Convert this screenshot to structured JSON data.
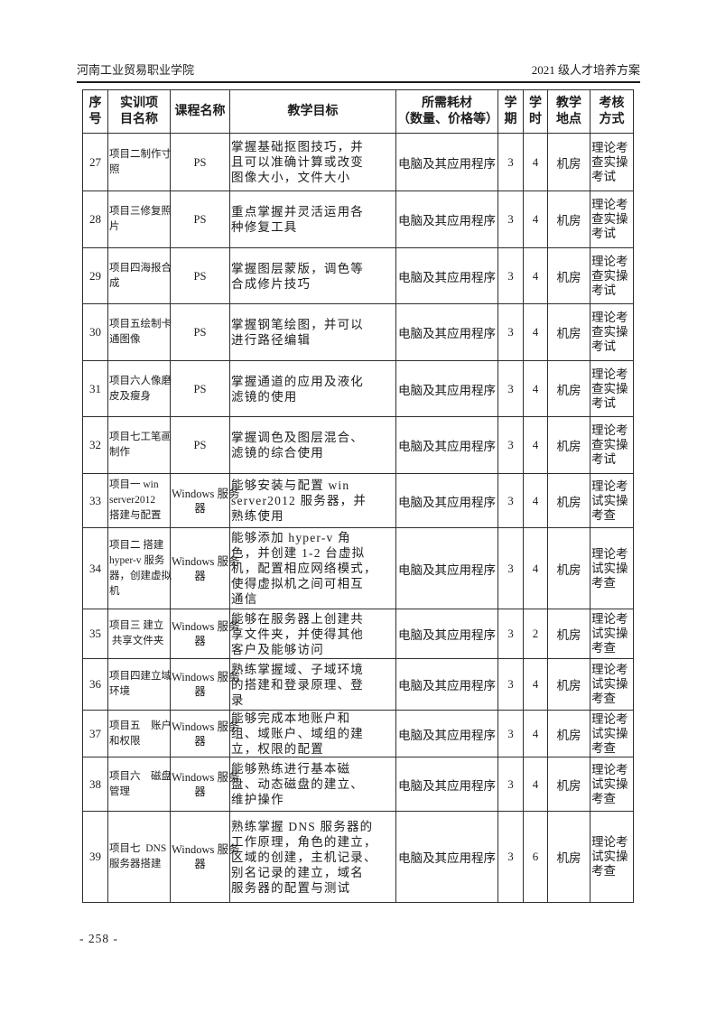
{
  "page": {
    "header_left": "河南工业贸易职业学院",
    "header_right": "2021 级人才培养方案",
    "footer": "- 258 -"
  },
  "table": {
    "headers": [
      "序\n号",
      "实训项\n目名称",
      "课程名称",
      "教学目标",
      "所需耗材\n（数量、价格等）",
      "学\n期",
      "学\n时",
      "教学\n地点",
      "考核\n方式"
    ],
    "rows": [
      {
        "no": "27",
        "project": "项目二制作寸\n照",
        "course": "PS",
        "goal": "掌握基础抠图技巧，并\n且可以准确计算或改变\n图像大小，文件大小",
        "materials": "电脑及其应用程序",
        "semester": "3",
        "hours": "4",
        "location": "机房",
        "assessment": "理论考\n查实操\n考试"
      },
      {
        "no": "28",
        "project": "项目三修复照\n片",
        "course": "PS",
        "goal": "重点掌握并灵活运用各\n种修复工具",
        "materials": "电脑及其应用程序",
        "semester": "3",
        "hours": "4",
        "location": "机房",
        "assessment": "理论考\n查实操\n考试"
      },
      {
        "no": "29",
        "project": "项目四海报合\n成",
        "course": "PS",
        "goal": "掌握图层蒙版，调色等\n合成修片技巧",
        "materials": "电脑及其应用程序",
        "semester": "3",
        "hours": "4",
        "location": "机房",
        "assessment": "理论考\n查实操\n考试"
      },
      {
        "no": "30",
        "project": "项目五绘制卡\n通图像",
        "course": "PS",
        "goal": "掌握钢笔绘图，并可以\n进行路径编辑",
        "materials": "电脑及其应用程序",
        "semester": "3",
        "hours": "4",
        "location": "机房",
        "assessment": "理论考\n查实操\n考试"
      },
      {
        "no": "31",
        "project": "项目六人像磨\n皮及瘦身",
        "course": "PS",
        "goal": "掌握通道的应用及液化\n滤镜的使用",
        "materials": "电脑及其应用程序",
        "semester": "3",
        "hours": "4",
        "location": "机房",
        "assessment": "理论考\n查实操\n考试"
      },
      {
        "no": "32",
        "project": "项目七工笔画\n制作",
        "course": "PS",
        "goal": "掌握调色及图层混合、\n滤镜的综合使用",
        "materials": "电脑及其应用程序",
        "semester": "3",
        "hours": "4",
        "location": "机房",
        "assessment": "理论考\n查实操\n考试"
      },
      {
        "no": "33",
        "project": "项目一 win\nserver2012\n搭建与配置",
        "course": "Windows 服务\n器",
        "goal": "能够安装与配置 win\nserver2012 服务器，并\n熟练使用",
        "materials": "电脑及其应用程序",
        "semester": "3",
        "hours": "4",
        "location": "机房",
        "assessment": "理论考\n试实操\n考查"
      },
      {
        "no": "34",
        "project": "项目二 搭建\nhyper-v 服务\n器，创建虚拟\n机",
        "course": "Windows 服务\n器",
        "goal": "能够添加 hyper-v 角\n色，并创建 1-2 台虚拟\n机，配置相应网络模式，\n使得虚拟机之间可相互\n通信",
        "materials": "电脑及其应用程序",
        "semester": "3",
        "hours": "4",
        "location": "机房",
        "assessment": "理论考\n试实操\n考查"
      },
      {
        "no": "35",
        "project": "项目三 建立\n 共享文件夹",
        "course": "Windows 服务\n器",
        "goal": "能够在服务器上创建共\n享文件夹，并使得其他\n客户及能够访问",
        "materials": "电脑及其应用程序",
        "semester": "3",
        "hours": "2",
        "location": "机房",
        "assessment": "理论考\n试实操\n考查"
      },
      {
        "no": "36",
        "project": "项目四建立域\n环境",
        "course": "Windows 服务\n器",
        "goal": "熟练掌握域、子域环境\n的搭建和登录原理、登\n录",
        "materials": "电脑及其应用程序",
        "semester": "3",
        "hours": "4",
        "location": "机房",
        "assessment": "理论考\n试实操\n考查"
      },
      {
        "no": "37",
        "project": "项目五　账户\n和权限",
        "course": "Windows 服务\n器",
        "goal": "能够完成本地账户和\n组、域账户、域组的建\n立，权限的配置",
        "materials": "电脑及其应用程序",
        "semester": "3",
        "hours": "4",
        "location": "机房",
        "assessment": "理论考\n试实操\n考查"
      },
      {
        "no": "38",
        "project": "项目六　磁盘\n管理",
        "course": "Windows 服务\n器",
        "goal": "能够熟练进行基本磁\n盘、动态磁盘的建立、\n维护操作",
        "materials": "电脑及其应用程序",
        "semester": "3",
        "hours": "4",
        "location": "机房",
        "assessment": "理论考\n试实操\n考查"
      },
      {
        "no": "39",
        "project": "项目七  DNS\n服务器搭建",
        "course": "Windows 服务\n器",
        "goal": "熟练掌握 DNS 服务器的\n工作原理，角色的建立，\n区域的创建，主机记录、\n别名记录的建立，域名\n服务器的配置与测试",
        "materials": "电脑及其应用程序",
        "semester": "3",
        "hours": "6",
        "location": "机房",
        "assessment": "理论考\n试实操\n考查"
      }
    ]
  }
}
